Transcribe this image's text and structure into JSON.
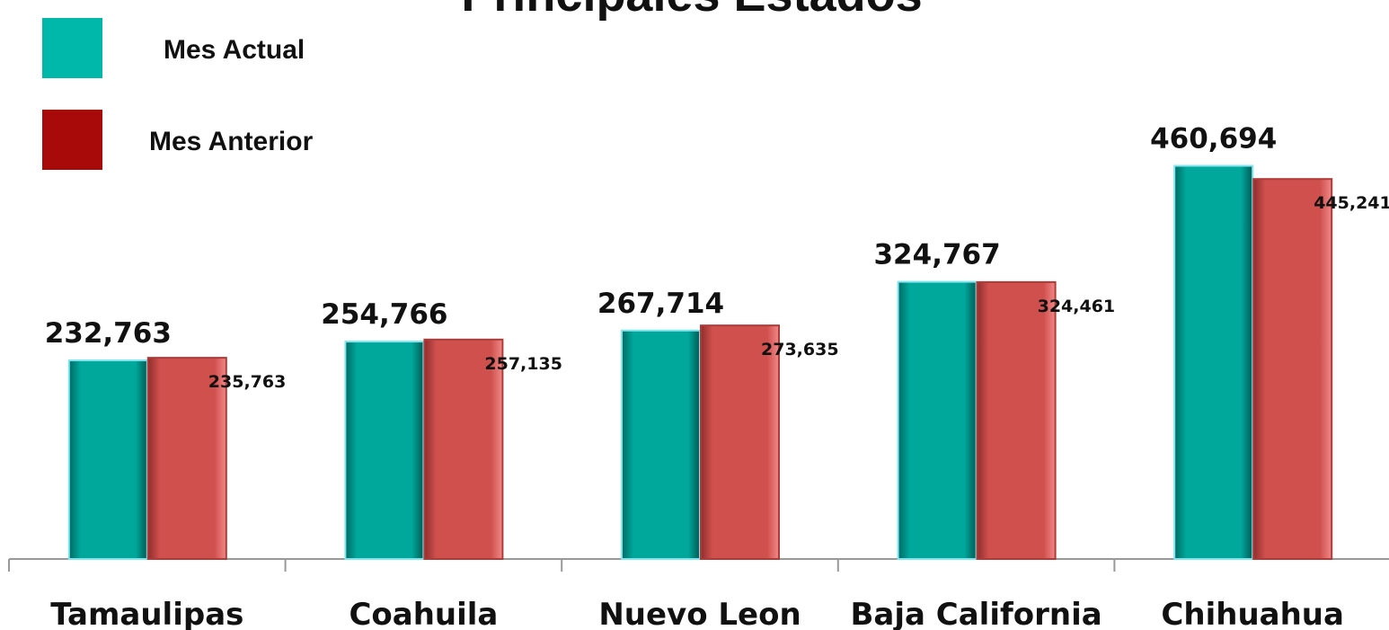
{
  "chart_data": {
    "type": "bar",
    "title": "Principales Estados",
    "categories": [
      "Tamaulipas",
      "Coahuila",
      "Nuevo Leon",
      "Baja California",
      "Chihuahua"
    ],
    "series": [
      {
        "name": "Mes Actual",
        "color": "#00a89c",
        "values": [
          232763,
          254766,
          267714,
          324767,
          460694
        ],
        "value_labels": [
          "232,763",
          "254,766",
          "267,714",
          "324,767",
          "460,694"
        ]
      },
      {
        "name": "Mes Anterior",
        "color": "#d0504e",
        "values": [
          235763,
          257135,
          273635,
          324461,
          445241
        ],
        "value_labels": [
          "235,763",
          "257,135",
          "273,635",
          "324,461",
          "445,241"
        ]
      }
    ],
    "ylim": [
      0,
      655000
    ]
  }
}
